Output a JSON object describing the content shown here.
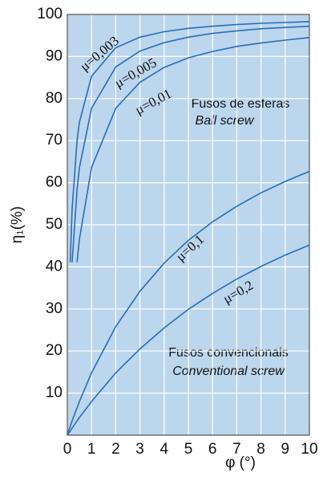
{
  "chart_data": {
    "type": "line",
    "ylabel": "η₁(%)",
    "xlabel": "φ (°)",
    "x": [
      0,
      0.12,
      0.2,
      0.4,
      0.5,
      1,
      2,
      3,
      4,
      5,
      6,
      7,
      8,
      9,
      10
    ],
    "series": [
      {
        "name": "μ=0,003",
        "color": "#2a6db5",
        "values": [
          null,
          41.1,
          53.8,
          69.9,
          74.4,
          85.3,
          92.1,
          94.6,
          95.9,
          96.7,
          97.2,
          97.6,
          97.9,
          98.1,
          98.3
        ]
      },
      {
        "name": "μ=0,005",
        "color": "#2a6db5",
        "values": [
          null,
          null,
          41.1,
          58.3,
          63.6,
          77.7,
          87.5,
          91.3,
          93.3,
          94.6,
          95.5,
          96.1,
          96.6,
          96.9,
          97.2
        ]
      },
      {
        "name": "μ=0,01",
        "color": "#2a6db5",
        "values": [
          null,
          null,
          null,
          41.1,
          46.6,
          63.6,
          77.7,
          83.9,
          87.4,
          89.7,
          91.2,
          92.4,
          93.2,
          93.9,
          94.5
        ]
      },
      {
        "name": "μ=0,1",
        "color": "#2a6db5",
        "values": [
          0,
          2.1,
          3.4,
          6.5,
          8.0,
          14.8,
          25.8,
          34.2,
          40.9,
          46.3,
          50.7,
          54.4,
          57.6,
          60.3,
          62.7
        ]
      },
      {
        "name": "μ=0,2",
        "color": "#2a6db5",
        "values": [
          0,
          1.0,
          1.7,
          3.4,
          4.2,
          8.0,
          14.8,
          20.5,
          25.5,
          29.9,
          33.7,
          37.1,
          40.1,
          42.8,
          45.2
        ]
      }
    ],
    "annotations": [
      "Fusos de esferas",
      "Ball screw",
      "Fusos convencionais",
      "Conventional screw"
    ],
    "xlim": [
      0,
      10
    ],
    "xticks": [
      0,
      1,
      2,
      3,
      4,
      5,
      6,
      7,
      8,
      9,
      10
    ],
    "ylim": [
      0,
      100
    ],
    "yticks": [
      10,
      20,
      30,
      40,
      50,
      60,
      70,
      80,
      90,
      100
    ],
    "grid": true,
    "background": "#bcd6ee"
  }
}
